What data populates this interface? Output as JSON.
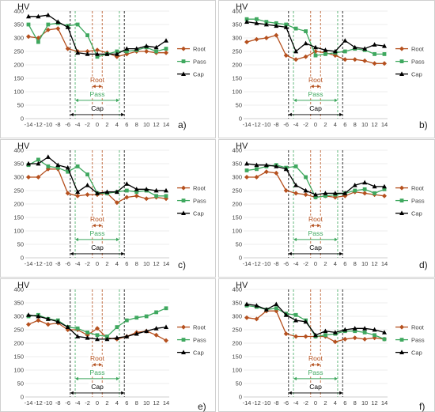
{
  "figure": {
    "panel_letters": [
      "a)",
      "b)",
      "c)",
      "d)",
      "e)",
      "f)"
    ]
  },
  "styles": {
    "colors": {
      "Root": "#b5501e",
      "Pass": "#3fa85f",
      "Cap": "#000000",
      "grid": "#e6e6e6",
      "axis": "#bfbfbf"
    },
    "markers": {
      "Root": "diamond",
      "Pass": "square",
      "Cap": "triangle"
    }
  },
  "zone_labels": {
    "root": "Root",
    "pass": "Pass",
    "cap": "Cap"
  },
  "chart_data": [
    {
      "type": "line",
      "panel": "a)",
      "ylabel": "HV",
      "x": [
        -14,
        -12,
        -10,
        -8,
        -6,
        -4,
        -2,
        0,
        2,
        4,
        6,
        8,
        10,
        12,
        14
      ],
      "xticks": [
        -14,
        -12,
        -10,
        -8,
        -6,
        -4,
        -2,
        0,
        2,
        4,
        6,
        8,
        10,
        12,
        14
      ],
      "yticks": [
        0,
        50,
        100,
        150,
        200,
        250,
        300,
        350,
        400
      ],
      "ylim": [
        0,
        400
      ],
      "zones": {
        "root": [
          -1,
          1
        ],
        "pass": [
          -4.5,
          4.5
        ],
        "cap": [
          -5.5,
          5.5
        ]
      },
      "legend_position": "right",
      "series": [
        {
          "name": "Root",
          "values": [
            305,
            300,
            330,
            335,
            260,
            250,
            250,
            255,
            245,
            230,
            240,
            250,
            250,
            245,
            245
          ]
        },
        {
          "name": "Pass",
          "values": [
            350,
            285,
            350,
            355,
            345,
            350,
            310,
            230,
            240,
            250,
            250,
            255,
            265,
            250,
            260
          ]
        },
        {
          "name": "Cap",
          "values": [
            380,
            380,
            385,
            360,
            340,
            245,
            240,
            240,
            240,
            240,
            260,
            260,
            270,
            265,
            290
          ]
        }
      ]
    },
    {
      "type": "line",
      "panel": "b)",
      "ylabel": "HV",
      "x": [
        -14,
        -12,
        -10,
        -8,
        -6,
        -4,
        -2,
        0,
        2,
        4,
        6,
        8,
        10,
        12,
        14
      ],
      "xticks": [
        -14,
        -12,
        -10,
        -8,
        -6,
        -4,
        -2,
        0,
        2,
        4,
        6,
        8,
        10,
        12,
        14
      ],
      "yticks": [
        0,
        50,
        100,
        150,
        200,
        250,
        300,
        350,
        400
      ],
      "ylim": [
        0,
        400
      ],
      "zones": {
        "root": [
          -1,
          1
        ],
        "pass": [
          -4.5,
          4.5
        ],
        "cap": [
          -5.5,
          5.5
        ]
      },
      "legend_position": "right",
      "series": [
        {
          "name": "Root",
          "values": [
            285,
            295,
            300,
            310,
            235,
            220,
            230,
            250,
            245,
            235,
            220,
            220,
            215,
            205,
            205
          ]
        },
        {
          "name": "Pass",
          "values": [
            370,
            370,
            360,
            355,
            350,
            335,
            325,
            235,
            240,
            245,
            250,
            260,
            255,
            240,
            240
          ]
        },
        {
          "name": "Cap",
          "values": [
            360,
            355,
            350,
            345,
            340,
            250,
            280,
            265,
            255,
            250,
            290,
            265,
            260,
            275,
            270
          ]
        }
      ]
    },
    {
      "type": "line",
      "panel": "c)",
      "ylabel": "HV",
      "x": [
        -14,
        -12,
        -10,
        -8,
        -6,
        -4,
        -2,
        0,
        2,
        4,
        6,
        8,
        10,
        12,
        14
      ],
      "xticks": [
        -14,
        -12,
        -10,
        -8,
        -6,
        -4,
        -2,
        0,
        2,
        4,
        6,
        8,
        10,
        12,
        14
      ],
      "yticks": [
        0,
        50,
        100,
        150,
        200,
        250,
        300,
        350,
        400
      ],
      "ylim": [
        0,
        400
      ],
      "zones": {
        "root": [
          -1,
          1
        ],
        "pass": [
          -4.5,
          4.5
        ],
        "cap": [
          -5.5,
          5.5
        ]
      },
      "legend_position": "right",
      "series": [
        {
          "name": "Root",
          "values": [
            300,
            300,
            330,
            330,
            240,
            230,
            235,
            235,
            240,
            205,
            225,
            230,
            220,
            225,
            220
          ]
        },
        {
          "name": "Pass",
          "values": [
            345,
            365,
            340,
            335,
            320,
            340,
            310,
            240,
            240,
            245,
            250,
            245,
            250,
            230,
            230
          ]
        },
        {
          "name": "Cap",
          "values": [
            350,
            350,
            375,
            345,
            335,
            245,
            270,
            240,
            245,
            245,
            275,
            255,
            255,
            250,
            250
          ]
        }
      ]
    },
    {
      "type": "line",
      "panel": "d)",
      "ylabel": "HV",
      "x": [
        -14,
        -12,
        -10,
        -8,
        -6,
        -4,
        -2,
        0,
        2,
        4,
        6,
        8,
        10,
        12,
        14
      ],
      "xticks": [
        -14,
        -12,
        -10,
        -8,
        -6,
        -4,
        -2,
        0,
        2,
        4,
        6,
        8,
        10,
        12,
        14
      ],
      "yticks": [
        0,
        50,
        100,
        150,
        200,
        250,
        300,
        350,
        400
      ],
      "ylim": [
        0,
        400
      ],
      "zones": {
        "root": [
          -1,
          1
        ],
        "pass": [
          -4.5,
          4.5
        ],
        "cap": [
          -5.5,
          5.5
        ]
      },
      "legend_position": "right",
      "series": [
        {
          "name": "Root",
          "values": [
            300,
            300,
            320,
            315,
            250,
            240,
            235,
            225,
            230,
            225,
            230,
            245,
            240,
            235,
            230
          ]
        },
        {
          "name": "Pass",
          "values": [
            325,
            330,
            340,
            345,
            335,
            340,
            300,
            225,
            230,
            235,
            240,
            250,
            255,
            240,
            255
          ]
        },
        {
          "name": "Cap",
          "values": [
            350,
            345,
            345,
            340,
            330,
            270,
            250,
            235,
            240,
            240,
            240,
            270,
            280,
            265,
            265
          ]
        }
      ]
    },
    {
      "type": "line",
      "panel": "e)",
      "ylabel": "HV",
      "x": [
        -14,
        -12,
        -10,
        -8,
        -6,
        -4,
        -2,
        0,
        2,
        4,
        6,
        8,
        10,
        12,
        14
      ],
      "xticks": [
        -14,
        -12,
        -10,
        -8,
        -6,
        -4,
        -2,
        0,
        2,
        4,
        6,
        8,
        10,
        12,
        14
      ],
      "yticks": [
        0,
        50,
        100,
        150,
        200,
        250,
        300,
        350,
        400
      ],
      "ylim": [
        0,
        400
      ],
      "zones": {
        "root": [
          -1,
          1
        ],
        "pass": [
          -4.5,
          4.5
        ],
        "cap": [
          -5.5,
          5.5
        ]
      },
      "legend_position": "right",
      "series": [
        {
          "name": "Root",
          "values": [
            270,
            285,
            270,
            275,
            250,
            250,
            230,
            255,
            220,
            215,
            225,
            240,
            245,
            230,
            210
          ]
        },
        {
          "name": "Pass",
          "values": [
            300,
            305,
            290,
            285,
            260,
            255,
            240,
            230,
            225,
            260,
            285,
            295,
            300,
            315,
            330
          ]
        },
        {
          "name": "Cap",
          "values": [
            305,
            300,
            290,
            280,
            260,
            225,
            220,
            215,
            215,
            220,
            225,
            235,
            245,
            255,
            260
          ]
        }
      ]
    },
    {
      "type": "line",
      "panel": "f)",
      "ylabel": "HV",
      "x": [
        -14,
        -12,
        -10,
        -8,
        -6,
        -4,
        -2,
        0,
        2,
        4,
        6,
        8,
        10,
        12,
        14
      ],
      "xticks": [
        -14,
        -12,
        -10,
        -8,
        -6,
        -4,
        -2,
        0,
        2,
        4,
        6,
        8,
        10,
        12,
        14
      ],
      "yticks": [
        0,
        50,
        100,
        150,
        200,
        250,
        300,
        350,
        400
      ],
      "ylim": [
        0,
        400
      ],
      "zones": {
        "root": [
          -1,
          1
        ],
        "pass": [
          -4.5,
          4.5
        ],
        "cap": [
          -5.5,
          5.5
        ]
      },
      "legend_position": "right",
      "series": [
        {
          "name": "Root",
          "values": [
            295,
            290,
            320,
            320,
            235,
            225,
            225,
            225,
            225,
            205,
            215,
            220,
            215,
            220,
            215
          ]
        },
        {
          "name": "Pass",
          "values": [
            340,
            335,
            325,
            330,
            310,
            305,
            285,
            225,
            230,
            235,
            245,
            245,
            240,
            230,
            215
          ]
        },
        {
          "name": "Cap",
          "values": [
            345,
            340,
            325,
            345,
            305,
            285,
            280,
            230,
            245,
            240,
            250,
            255,
            255,
            250,
            240
          ]
        }
      ]
    }
  ]
}
